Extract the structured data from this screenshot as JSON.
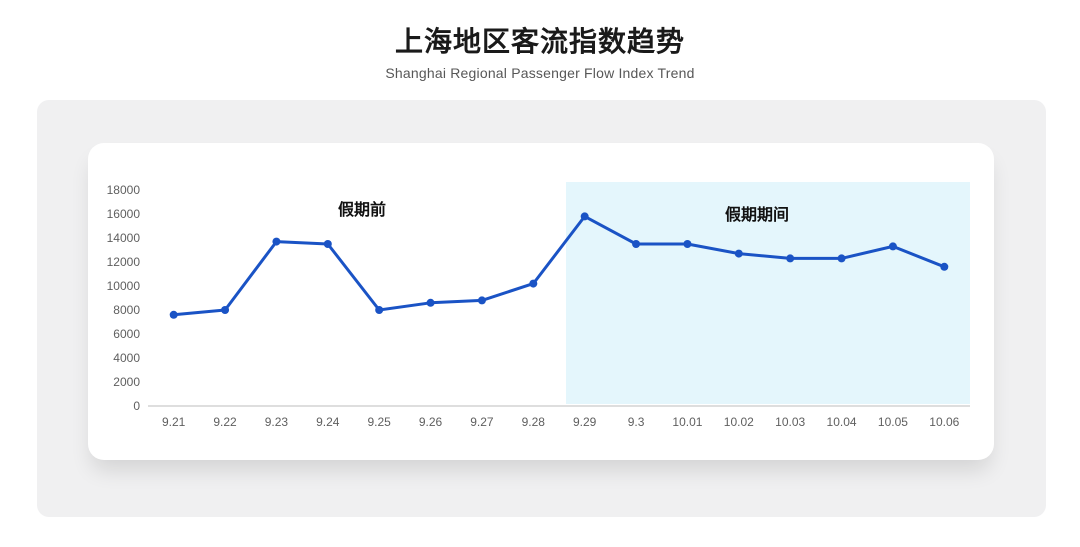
{
  "header": {
    "title": "上海地区客流指数趋势",
    "subtitle": "Shanghai Regional Passenger Flow Index Trend"
  },
  "chart_data": {
    "type": "line",
    "title": "上海地区客流指数趋势",
    "subtitle": "Shanghai Regional Passenger Flow Index Trend",
    "categories": [
      "9.21",
      "9.22",
      "9.23",
      "9.24",
      "9.25",
      "9.26",
      "9.27",
      "9.28",
      "9.29",
      "9.3",
      "10.01",
      "10.02",
      "10.03",
      "10.04",
      "10.05",
      "10.06"
    ],
    "values": [
      7600,
      8000,
      13700,
      13500,
      8000,
      8600,
      8800,
      10200,
      15800,
      13500,
      13500,
      12700,
      12300,
      12300,
      13300,
      11600
    ],
    "xlabel": "",
    "ylabel": "",
    "ylim": [
      0,
      18000
    ],
    "y_ticks": [
      0,
      2000,
      4000,
      6000,
      8000,
      10000,
      12000,
      14000,
      16000,
      18000
    ],
    "grid": false,
    "legend": "none",
    "line_color": "#1a53c5",
    "marker": "circle",
    "annotations": [
      {
        "label": "假期前",
        "meaning": "before holiday",
        "over_categories": "9.21-9.28"
      },
      {
        "label": "假期期间",
        "meaning": "during holiday",
        "over_categories": "9.29-10.06"
      }
    ],
    "highlight_region": {
      "from_category": "9.29",
      "to_category": "10.06",
      "color": "#e4f6fc"
    }
  },
  "colors": {
    "line": "#1a53c5",
    "highlight": "#e4f6fc",
    "panel_bg": "#f0f0f1",
    "card_bg": "#ffffff",
    "axis_line": "#d4d4d4",
    "axis_text": "#5f5f5f",
    "title_text": "#1a1a1a",
    "subtitle_text": "#575757",
    "annotation_text": "#111111"
  }
}
